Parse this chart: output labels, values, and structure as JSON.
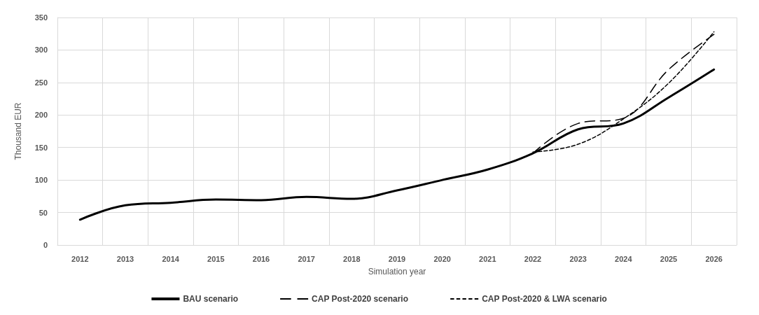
{
  "chart_data": {
    "type": "line",
    "xlabel": "Simulation year",
    "ylabel": "Thousand EUR",
    "categories": [
      "2012",
      "2013",
      "2014",
      "2015",
      "2016",
      "2017",
      "2018",
      "2019",
      "2020",
      "2021",
      "2022",
      "2023",
      "2024",
      "2025",
      "2026"
    ],
    "series": [
      {
        "name": "BAU scenario",
        "color": "#000000",
        "line_style": "solid",
        "values": [
          39,
          61,
          65,
          70,
          69,
          74,
          71,
          84,
          100,
          116,
          141,
          178,
          187,
          227,
          270
        ]
      },
      {
        "name": "CAP Post-2020 scenario",
        "color": "#000000",
        "line_style": "dashed",
        "values": [
          null,
          null,
          null,
          null,
          null,
          null,
          null,
          null,
          null,
          null,
          141,
          187,
          195,
          270,
          324
        ]
      },
      {
        "name": "CAP Post-2020 & LWA scenario",
        "color": "#000000",
        "line_style": "dotted",
        "values": [
          null,
          null,
          null,
          null,
          null,
          null,
          null,
          null,
          null,
          null,
          143,
          155,
          194,
          249,
          328
        ]
      }
    ],
    "ylim": [
      0,
      350
    ],
    "yticks": [
      0,
      50,
      100,
      150,
      200,
      250,
      300,
      350
    ],
    "grid": true,
    "legend": "bottom",
    "marker": "none"
  }
}
